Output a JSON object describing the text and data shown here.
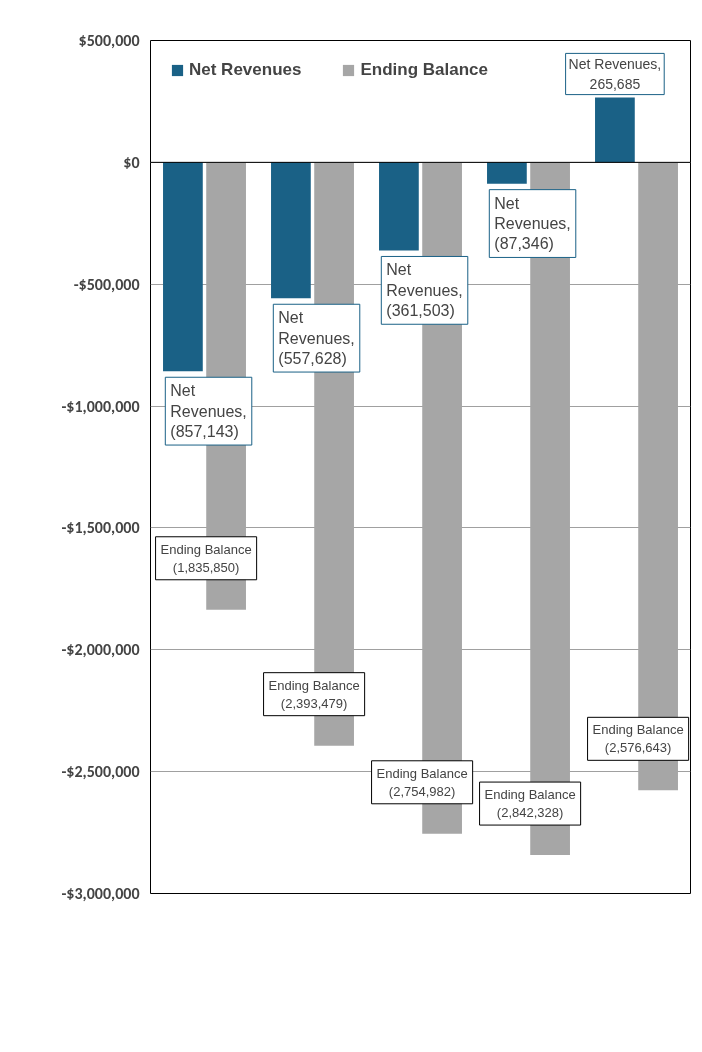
{
  "chart_data": {
    "type": "bar",
    "categories": [
      null,
      null,
      null,
      null,
      null
    ],
    "series": [
      {
        "name": "Net Revenues",
        "color": "#1a6186",
        "values": [
          -857143,
          -557628,
          -361503,
          -87346,
          265685
        ],
        "value_labels": [
          "Net\nRevenues,\n(857,143)",
          "Net\nRevenues,\n(557,628)",
          "Net\nRevenues,\n(361,503)",
          "Net\nRevenues,\n(87,346)",
          "Net\nRevenues,\n265,685"
        ]
      },
      {
        "name": "Ending Balance",
        "color": "#a6a6a6",
        "values": [
          -1835850,
          -2393479,
          -2754982,
          -2842328,
          -2576643
        ],
        "value_labels": [
          "Ending Balance\n(1,835,850)",
          "Ending Balance\n(2,393,479)",
          "Ending Balance\n(2,754,982)",
          "Ending Balance\n(2,842,328)",
          "Ending Balance\n(2,576,643)"
        ]
      }
    ],
    "ylim": [
      -3000000,
      500000
    ],
    "yticks": [
      {
        "value": 500000,
        "label": "$500,000"
      },
      {
        "value": 0,
        "label": "$0"
      },
      {
        "value": -500000,
        "label": "-$500,000"
      },
      {
        "value": -1000000,
        "label": "-$1,000,000"
      },
      {
        "value": -1500000,
        "label": "-$1,500,000"
      },
      {
        "value": -2000000,
        "label": "-$2,000,000"
      },
      {
        "value": -2500000,
        "label": "-$2,500,000"
      },
      {
        "value": -3000000,
        "label": "-$3,000,000"
      }
    ],
    "grid": "y",
    "legend": "top left",
    "tick_labels": "y"
  }
}
